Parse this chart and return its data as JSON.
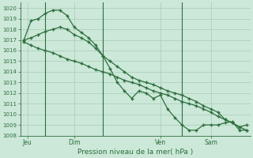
{
  "bg_color": "#cce8d8",
  "grid_color": "#a8ccb8",
  "line_color": "#2d6e3e",
  "xlabel": "Pression niveau de la mer( hPa )",
  "ylim": [
    1008,
    1020.5
  ],
  "yticks": [
    1008,
    1009,
    1010,
    1011,
    1012,
    1013,
    1014,
    1015,
    1016,
    1017,
    1018,
    1019,
    1020
  ],
  "xtick_labels": [
    "Jeu",
    "Dim",
    "Ven",
    "Sam"
  ],
  "xtick_positions": [
    0.5,
    7,
    19,
    26
  ],
  "vline_positions": [
    3,
    11,
    22
  ],
  "total_points": 32,
  "series1_x": [
    0,
    1,
    2,
    3,
    4,
    5,
    6,
    7,
    8,
    9,
    10,
    11,
    12,
    13,
    14,
    15,
    16,
    17,
    18,
    19,
    20,
    21,
    22,
    23,
    24,
    25,
    26,
    27,
    28,
    29,
    30,
    31
  ],
  "series1_y": [
    1017.0,
    1018.8,
    1019.0,
    1019.5,
    1019.8,
    1019.8,
    1019.3,
    1018.2,
    1017.7,
    1017.2,
    1016.5,
    1015.5,
    1014.3,
    1013.0,
    1012.2,
    1011.5,
    1012.2,
    1012.0,
    1011.5,
    1011.8,
    1010.5,
    1009.7,
    1009.0,
    1008.5,
    1008.5,
    1009.0,
    1009.0,
    1009.0,
    1009.2,
    1009.3,
    1008.5,
    1008.5
  ],
  "series2_x": [
    0,
    1,
    2,
    3,
    4,
    5,
    6,
    7,
    8,
    9,
    10,
    11,
    12,
    13,
    14,
    15,
    16,
    17,
    18,
    19,
    20,
    21,
    22,
    23,
    24,
    25,
    26,
    27,
    28,
    29,
    30,
    31
  ],
  "series2_y": [
    1017.0,
    1017.2,
    1017.5,
    1017.8,
    1018.0,
    1018.2,
    1018.0,
    1017.5,
    1017.2,
    1016.8,
    1016.2,
    1015.5,
    1015.0,
    1014.5,
    1014.0,
    1013.5,
    1013.2,
    1013.0,
    1012.8,
    1012.5,
    1012.2,
    1012.0,
    1011.8,
    1011.5,
    1011.2,
    1010.8,
    1010.5,
    1010.2,
    1009.5,
    1009.2,
    1008.8,
    1008.5
  ],
  "series3_x": [
    0,
    1,
    2,
    3,
    4,
    5,
    6,
    7,
    8,
    9,
    10,
    11,
    12,
    13,
    14,
    15,
    16,
    17,
    18,
    19,
    20,
    21,
    22,
    23,
    24,
    25,
    26,
    27,
    28,
    29,
    30,
    31
  ],
  "series3_y": [
    1016.8,
    1016.5,
    1016.2,
    1016.0,
    1015.8,
    1015.5,
    1015.2,
    1015.0,
    1014.8,
    1014.5,
    1014.2,
    1014.0,
    1013.8,
    1013.5,
    1013.2,
    1013.0,
    1012.8,
    1012.5,
    1012.2,
    1012.0,
    1011.8,
    1011.5,
    1011.2,
    1011.0,
    1010.8,
    1010.5,
    1010.2,
    1009.8,
    1009.5,
    1009.2,
    1008.8,
    1009.0
  ]
}
